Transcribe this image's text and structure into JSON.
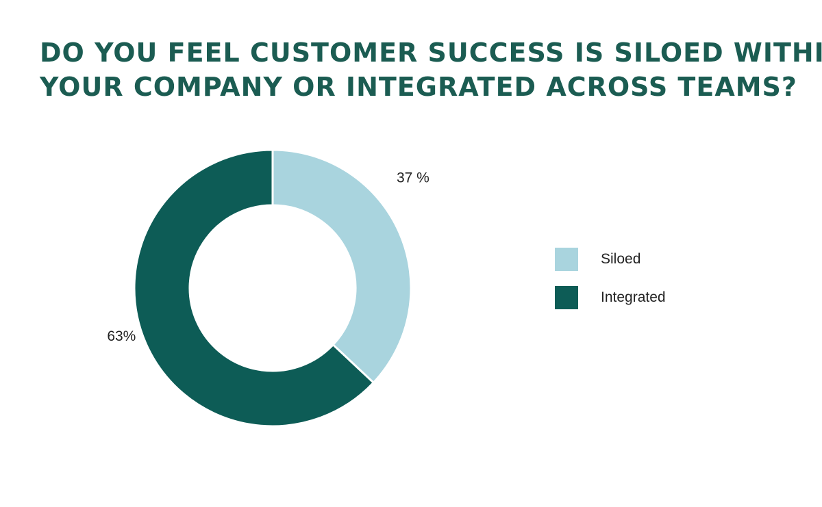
{
  "chart_data": {
    "type": "pie",
    "style": "donut",
    "title_lines": [
      "DO YOU FEEL CUSTOMER SUCCESS IS SILOED WITHIN",
      "YOUR COMPANY OR INTEGRATED ACROSS TEAMS?"
    ],
    "slices": [
      {
        "label": "Siloed",
        "value": 37,
        "data_label": "37 %",
        "color": "#a9d4de"
      },
      {
        "label": "Integrated",
        "value": 63,
        "data_label": "63%",
        "color": "#0d5c56"
      }
    ],
    "legend_position": "right"
  }
}
